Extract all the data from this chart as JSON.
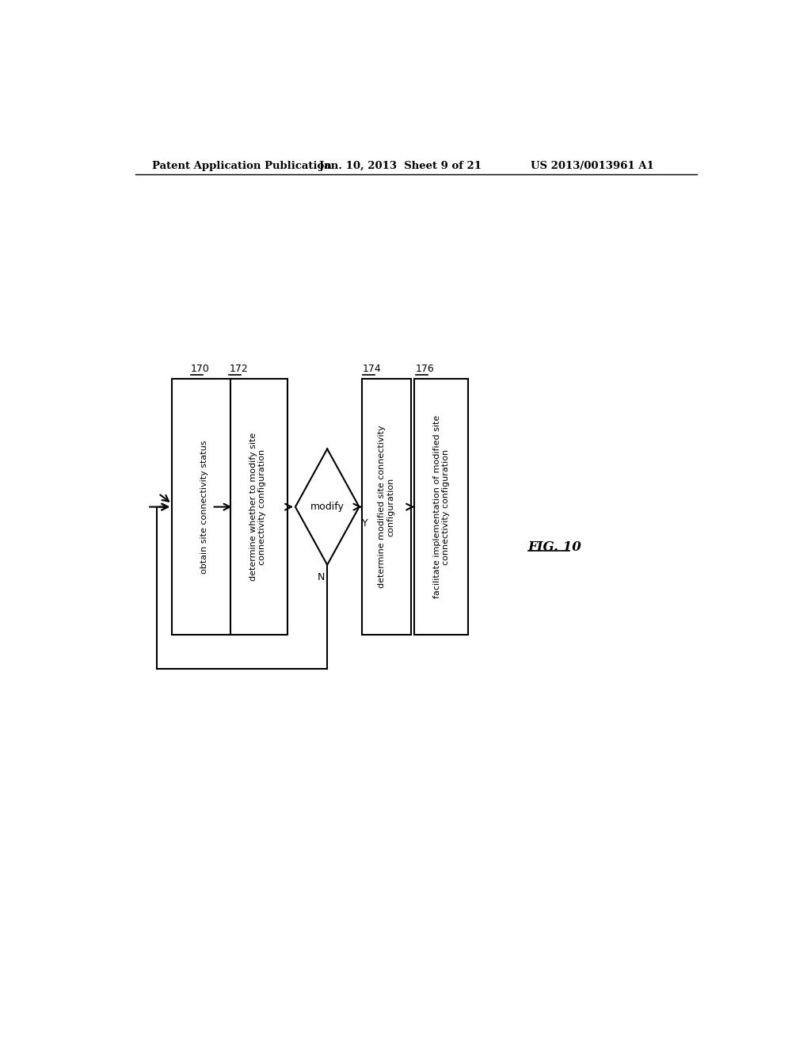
{
  "header_left": "Patent Application Publication",
  "header_mid": "Jan. 10, 2013  Sheet 9 of 21",
  "header_right": "US 2013/0013961 A1",
  "fig_label": "FIG. 10",
  "bg_color": "#ffffff",
  "label_170": "obtain site connectivity status",
  "label_172": "determine whether to modify site\nconnectivity configuration",
  "label_174": "determine modified site connectivity\nconfiguration",
  "label_176": "facilitate implementation of modified site\nconnectivity configuration",
  "diamond_label": "modify",
  "yes_label": "Y",
  "no_label": "N"
}
